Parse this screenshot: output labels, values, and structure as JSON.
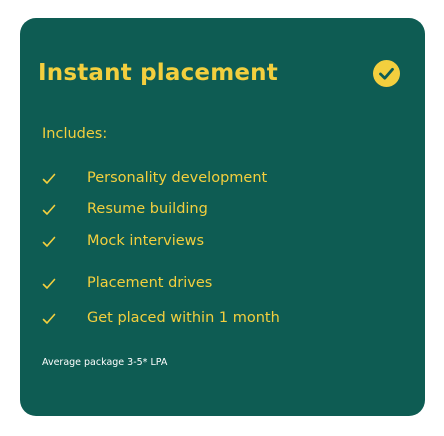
{
  "card": {
    "title": "Instant placement",
    "title_icon": "check-circle-icon",
    "includes_label": "Includes:",
    "features": [
      {
        "icon": "checkmark-icon",
        "label": "Personality development"
      },
      {
        "icon": "checkmark-icon",
        "label": "Resume building"
      },
      {
        "icon": "checkmark-icon",
        "label": "Mock interviews"
      },
      {
        "icon": "checkmark-icon",
        "label": "Placement drives"
      },
      {
        "icon": "checkmark-icon",
        "label": "Get placed within 1 month"
      }
    ],
    "package_note": "Average package 3-5* LPA"
  },
  "colors": {
    "card_background": "#0e5c53",
    "accent": "#f3cf3e",
    "note_text": "#ffffff",
    "page_background": "#ffffff"
  }
}
